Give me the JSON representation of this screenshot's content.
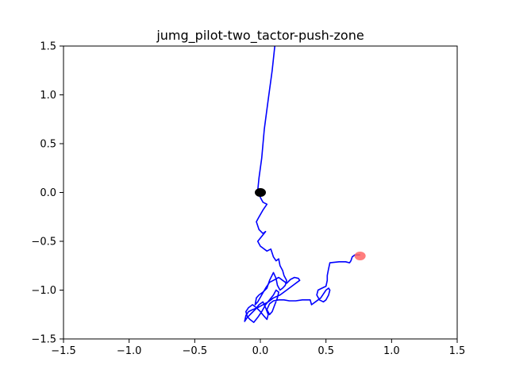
{
  "chart_data": {
    "type": "line",
    "title": "jumg_pilot-two_tactor-push-zone",
    "xlabel": "",
    "ylabel": "",
    "xlim": [
      -1.5,
      1.5
    ],
    "ylim": [
      -1.5,
      1.5
    ],
    "grid": false,
    "x_ticks": [
      -1.5,
      -1.0,
      -0.5,
      0.0,
      0.5,
      1.0,
      1.5
    ],
    "x_tick_labels": [
      "−1.5",
      "−1.0",
      "−0.5",
      "0.0",
      "0.5",
      "1.0",
      "1.5"
    ],
    "y_ticks": [
      1.5,
      1.0,
      0.5,
      0.0,
      -0.5,
      -1.0,
      -1.5
    ],
    "y_tick_labels": [
      "1.5",
      "1.0",
      "0.5",
      "0.0",
      "−0.5",
      "−1.0",
      "−1.5"
    ],
    "colors": {
      "path": "#0000ff",
      "start_marker": "#000000",
      "target_marker": "#ff6666"
    },
    "path": {
      "x": [
        0.11,
        0.09,
        0.06,
        0.03,
        0.01,
        -0.01,
        -0.02,
        0.0,
        0.02,
        0.05,
        0.02,
        -0.01,
        -0.03,
        -0.01,
        0.02,
        0.04,
        0.01,
        -0.02,
        0.0,
        0.05,
        0.08,
        0.1,
        0.12,
        0.14,
        0.15,
        0.17,
        0.18,
        0.2,
        0.19,
        0.17,
        0.15,
        0.13,
        0.12,
        0.1,
        0.07,
        0.05,
        0.02,
        -0.01,
        -0.03,
        -0.04,
        -0.02,
        0.01,
        0.04,
        0.07,
        0.1,
        0.14,
        0.17,
        0.2,
        0.23,
        0.26,
        0.29,
        0.3,
        0.25,
        0.2,
        0.15,
        0.1,
        0.06,
        0.02,
        -0.02,
        -0.06,
        -0.09,
        -0.11,
        -0.12,
        -0.1,
        -0.07,
        -0.04,
        -0.01,
        0.02,
        0.04,
        0.06,
        0.05,
        0.03,
        0.0,
        -0.03,
        -0.06,
        -0.09,
        -0.11,
        -0.1,
        -0.08,
        -0.05,
        -0.02,
        0.01,
        0.04,
        0.07,
        0.1,
        0.12,
        0.14,
        0.13,
        0.11,
        0.09,
        0.07,
        0.05,
        0.07,
        0.1,
        0.14,
        0.18,
        0.22,
        0.27,
        0.32,
        0.38,
        0.39,
        0.42,
        0.46,
        0.5,
        0.52,
        0.53,
        0.52,
        0.5,
        0.48,
        0.45,
        0.43,
        0.44,
        0.47,
        0.5,
        0.51,
        0.51,
        0.52,
        0.53,
        0.6,
        0.65,
        0.68,
        0.69,
        0.7,
        0.72,
        0.75,
        0.76
      ],
      "y": [
        1.5,
        1.25,
        0.95,
        0.65,
        0.35,
        0.15,
        0.02,
        -0.05,
        -0.1,
        -0.12,
        -0.18,
        -0.25,
        -0.3,
        -0.38,
        -0.42,
        -0.4,
        -0.45,
        -0.5,
        -0.55,
        -0.6,
        -0.58,
        -0.66,
        -0.7,
        -0.68,
        -0.75,
        -0.8,
        -0.85,
        -0.9,
        -0.95,
        -0.98,
        -1.0,
        -0.95,
        -0.88,
        -0.82,
        -0.9,
        -0.98,
        -1.02,
        -1.05,
        -1.08,
        -1.15,
        -1.12,
        -1.05,
        -0.98,
        -0.92,
        -0.9,
        -0.87,
        -0.9,
        -0.93,
        -0.89,
        -0.87,
        -0.88,
        -0.9,
        -0.95,
        -1.0,
        -1.05,
        -1.08,
        -1.12,
        -1.15,
        -1.18,
        -1.2,
        -1.22,
        -1.26,
        -1.32,
        -1.28,
        -1.24,
        -1.2,
        -1.15,
        -1.12,
        -1.18,
        -1.25,
        -1.3,
        -1.27,
        -1.22,
        -1.18,
        -1.15,
        -1.18,
        -1.22,
        -1.27,
        -1.3,
        -1.33,
        -1.28,
        -1.22,
        -1.15,
        -1.1,
        -1.05,
        -1.0,
        -1.02,
        -1.08,
        -1.15,
        -1.22,
        -1.25,
        -1.2,
        -1.14,
        -1.11,
        -1.1,
        -1.1,
        -1.11,
        -1.11,
        -1.1,
        -1.1,
        -1.15,
        -1.12,
        -1.08,
        -1.0,
        -0.98,
        -1.0,
        -1.05,
        -1.1,
        -1.12,
        -1.1,
        -1.05,
        -1.0,
        -0.98,
        -0.96,
        -0.9,
        -0.85,
        -0.78,
        -0.72,
        -0.71,
        -0.71,
        -0.72,
        -0.7,
        -0.66,
        -0.64,
        -0.64,
        -0.64
      ]
    },
    "markers": [
      {
        "name": "start",
        "x": 0.0,
        "y": 0.0,
        "color": "#000000",
        "opacity": 1.0
      },
      {
        "name": "target",
        "x": 0.76,
        "y": -0.65,
        "color": "#ff6666",
        "opacity": 0.85
      }
    ]
  }
}
